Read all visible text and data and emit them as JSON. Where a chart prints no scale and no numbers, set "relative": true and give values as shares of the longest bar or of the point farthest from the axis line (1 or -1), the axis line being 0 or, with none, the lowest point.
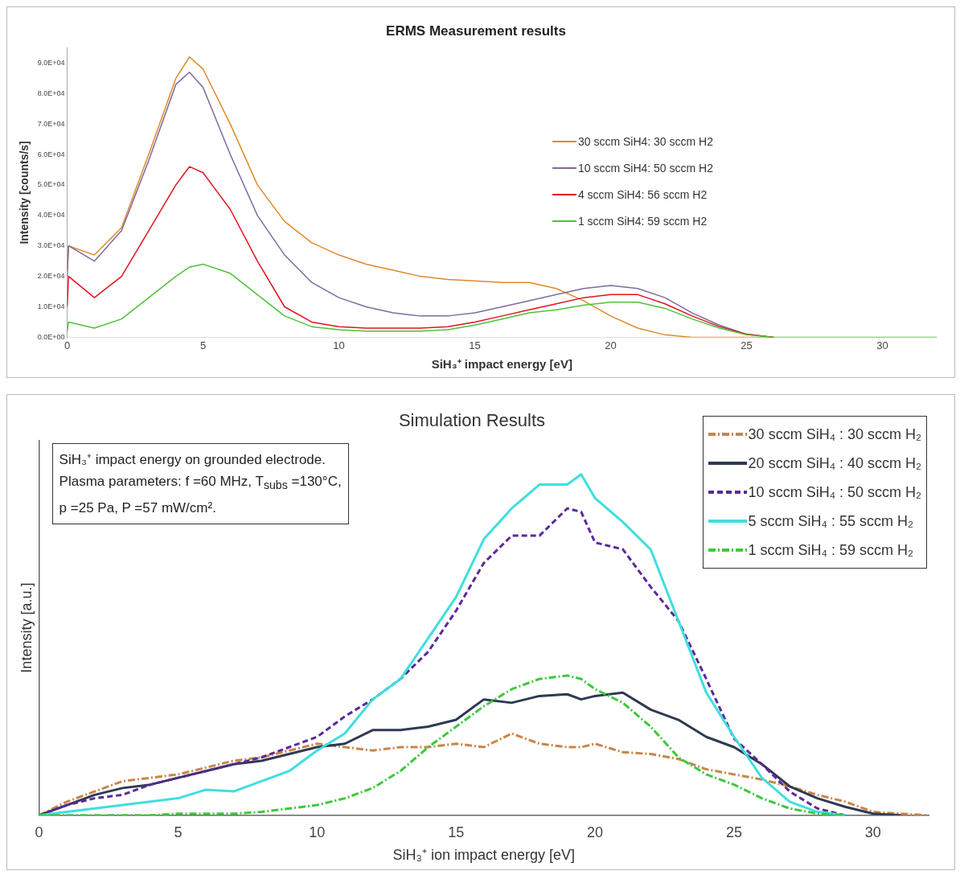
{
  "chart_data": [
    {
      "type": "line",
      "title": "ERMS Measurement results",
      "xlabel": "SiH₃⁺ impact energy [eV]",
      "ylabel": "Intensity [counts/s]",
      "x": [
        0,
        0.05,
        1,
        2,
        3,
        4,
        4.5,
        5,
        6,
        7,
        8,
        9,
        10,
        11,
        12,
        13,
        14,
        15,
        16,
        17,
        18,
        19,
        20,
        21,
        22,
        23,
        24,
        25,
        26,
        28,
        30,
        32
      ],
      "series": [
        {
          "name": "30 sccm SiH4: 30 sccm H2",
          "color": "#e0892c",
          "values": [
            22000,
            30000,
            27000,
            36000,
            60000,
            85000,
            92000,
            88000,
            70000,
            50000,
            38000,
            31000,
            27000,
            24000,
            22000,
            20000,
            19000,
            18500,
            18000,
            18000,
            16000,
            12000,
            7000,
            3000,
            800,
            0,
            0,
            0,
            0,
            null,
            null,
            null
          ]
        },
        {
          "name": "10 sccm SiH4: 50 sccm H2",
          "color": "#7e6a9e",
          "values": [
            20000,
            30000,
            25000,
            35000,
            58000,
            83000,
            87000,
            82000,
            60000,
            40000,
            27000,
            18000,
            13000,
            10000,
            8000,
            7000,
            7000,
            8000,
            10000,
            12000,
            14000,
            16000,
            17000,
            16000,
            13000,
            8000,
            4000,
            1000,
            0,
            null,
            null,
            null
          ]
        },
        {
          "name": "4 sccm SiH4: 56 sccm H2",
          "color": "#e0141e",
          "values": [
            10000,
            20000,
            13000,
            20000,
            35000,
            50000,
            56000,
            54000,
            42000,
            25000,
            10000,
            5000,
            3500,
            3000,
            3000,
            3000,
            3500,
            5000,
            7000,
            9000,
            11000,
            13000,
            14000,
            14000,
            11000,
            7000,
            3500,
            1000,
            0,
            null,
            null,
            null
          ]
        },
        {
          "name": "1 sccm SiH4: 59 sccm H2",
          "color": "#4ec23a",
          "values": [
            2000,
            5000,
            3000,
            6000,
            13000,
            20000,
            23000,
            24000,
            21000,
            14000,
            7000,
            3500,
            2500,
            2000,
            2000,
            2000,
            2500,
            4000,
            6000,
            8000,
            9000,
            10500,
            11500,
            11500,
            9500,
            6000,
            3000,
            800,
            0,
            0,
            0,
            0
          ]
        }
      ],
      "xlim": [
        0,
        32
      ],
      "xticks": [
        0,
        5,
        10,
        15,
        20,
        25,
        30
      ],
      "ylim": [
        0,
        95000
      ],
      "yticks": [
        {
          "value": 0,
          "label": "0.0E+00"
        },
        {
          "value": 10000,
          "label": "1.0E+04"
        },
        {
          "value": 20000,
          "label": "2.0E+04"
        },
        {
          "value": 30000,
          "label": "3.0E+04"
        },
        {
          "value": 40000,
          "label": "4.0E+04"
        },
        {
          "value": 50000,
          "label": "5.0E+04"
        },
        {
          "value": 60000,
          "label": "6.0E+04"
        },
        {
          "value": 70000,
          "label": "7.0E+04"
        },
        {
          "value": 80000,
          "label": "8.0E+04"
        },
        {
          "value": 90000,
          "label": "9.0E+04"
        }
      ],
      "legend": "right"
    },
    {
      "type": "line",
      "title": "Simulation Results",
      "xlabel": "SiH₃⁺ ion impact energy [eV]",
      "ylabel": "Intensity [a.u.]",
      "relative": true,
      "annotations": [
        "SiH₃⁺ impact energy on grounded electrode.",
        "Plasma parameters: f =60 MHz, T$_{subs}$ =130°C,",
        "p =25 Pa, P =57 mW/cm²."
      ],
      "x": [
        0,
        1,
        2,
        3,
        4,
        5,
        6,
        7,
        8,
        9,
        10,
        11,
        12,
        13,
        14,
        15,
        16,
        17,
        18,
        19,
        19.5,
        20,
        21,
        22,
        23,
        24,
        25,
        26,
        27,
        28,
        29,
        30,
        31,
        32
      ],
      "series": [
        {
          "name": "30 sccm SiH₄ : 30 sccm H₂",
          "color": "#c8864a",
          "line_style": "dashdot",
          "values": [
            0,
            0.04,
            0.07,
            0.1,
            0.11,
            0.12,
            0.14,
            0.16,
            0.17,
            0.19,
            0.21,
            0.2,
            0.19,
            0.2,
            0.2,
            0.21,
            0.2,
            0.24,
            0.21,
            0.2,
            0.2,
            0.21,
            0.185,
            0.18,
            0.165,
            0.135,
            0.12,
            0.105,
            0.085,
            0.06,
            0.04,
            0.01,
            0.005,
            0
          ]
        },
        {
          "name": "20 sccm SiH₄ : 40 sccm H₂",
          "color": "#2e3a52",
          "line_style": "solid",
          "values": [
            0,
            0.03,
            0.06,
            0.08,
            0.09,
            0.11,
            0.13,
            0.15,
            0.16,
            0.18,
            0.2,
            0.21,
            0.25,
            0.25,
            0.26,
            0.28,
            0.34,
            0.33,
            0.35,
            0.355,
            0.34,
            0.35,
            0.36,
            0.31,
            0.28,
            0.23,
            0.2,
            0.15,
            0.085,
            0.05,
            0.025,
            0.005,
            0,
            null
          ]
        },
        {
          "name": "10 sccm SiH₄ : 50 sccm H₂",
          "color": "#5a2a9a",
          "line_style": "dashed",
          "values": [
            0,
            0.03,
            0.05,
            0.06,
            0.09,
            0.11,
            0.13,
            0.15,
            0.17,
            0.2,
            0.23,
            0.29,
            0.34,
            0.4,
            0.48,
            0.6,
            0.74,
            0.82,
            0.82,
            0.9,
            0.89,
            0.8,
            0.78,
            0.67,
            0.57,
            0.4,
            0.225,
            0.15,
            0.07,
            0.02,
            0,
            null,
            null,
            null
          ]
        },
        {
          "name": "5 sccm SiH₄ : 55 sccm H₂",
          "color": "#40dede",
          "line_style": "solid",
          "values": [
            0,
            0.01,
            0.02,
            0.03,
            0.04,
            0.05,
            0.075,
            0.07,
            0.1,
            0.13,
            0.19,
            0.24,
            0.34,
            0.4,
            0.52,
            0.64,
            0.81,
            0.9,
            0.97,
            0.97,
            1,
            0.93,
            0.86,
            0.78,
            0.57,
            0.36,
            0.23,
            0.11,
            0.04,
            0.01,
            0,
            null,
            null,
            null
          ]
        },
        {
          "name": "1 sccm SiH₄ : 59 sccm H₂",
          "color": "#3ec83e",
          "line_style": "dashdot",
          "values": [
            0,
            0,
            0,
            0,
            0,
            0.005,
            0.005,
            0.005,
            0.01,
            0.02,
            0.03,
            0.05,
            0.08,
            0.13,
            0.2,
            0.26,
            0.32,
            0.37,
            0.4,
            0.41,
            0.4,
            0.37,
            0.33,
            0.26,
            0.17,
            0.12,
            0.09,
            0.05,
            0.02,
            0.005,
            0,
            null,
            null,
            null
          ]
        }
      ],
      "xlim": [
        0,
        32
      ],
      "xticks": [
        0,
        5,
        10,
        15,
        20,
        25,
        30
      ],
      "legend": "top right"
    }
  ]
}
